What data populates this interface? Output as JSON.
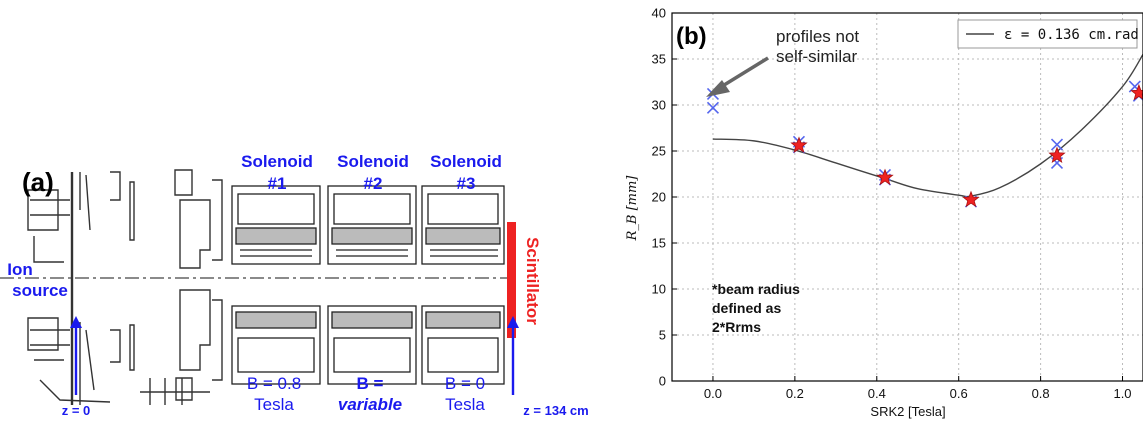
{
  "panel_a": {
    "label": "(a)",
    "ion_source": [
      "Ion",
      "source"
    ],
    "solenoids": [
      {
        "name": [
          "Solenoid",
          "#1"
        ],
        "field": [
          "B = 0.8",
          "Tesla"
        ]
      },
      {
        "name": [
          "Solenoid",
          "#2"
        ],
        "field": [
          "B =",
          "variable"
        ]
      },
      {
        "name": [
          "Solenoid",
          "#3"
        ],
        "field": [
          "B = 0",
          "Tesla"
        ]
      }
    ],
    "scintillator": "Scintillator",
    "z_start": "z = 0",
    "z_end": "z = 134 cm",
    "colors": {
      "blue": "#1a1aee",
      "red": "#ee2222",
      "line": "#333333"
    }
  },
  "panel_b": {
    "label": "(b)",
    "annotation": [
      "profiles not",
      "self-similar"
    ],
    "note": [
      "*beam radius",
      "defined as",
      "2*Rrms"
    ],
    "legend": "ε = 0.136 cm.rad",
    "legend_placement": "top-right",
    "xlabel": "SRK2 [Tesla]",
    "ylabel": "R_B [mm]",
    "colors": {
      "curve": "#444444",
      "star": "#ee2222",
      "cross": "#5566ee",
      "arrow": "#666666"
    }
  },
  "chart_data": {
    "type": "scatter",
    "title": "",
    "xlabel": "SRK2 [Tesla]",
    "ylabel": "R_B [mm]",
    "xlim": [
      -0.1,
      1.05
    ],
    "ylim": [
      0,
      40
    ],
    "xticks": [
      0.0,
      0.2,
      0.4,
      0.6,
      0.8,
      1.0
    ],
    "yticks": [
      0,
      5,
      10,
      15,
      20,
      25,
      30,
      35,
      40
    ],
    "grid": true,
    "series": [
      {
        "kind": "line",
        "x": [
          0.0,
          0.1,
          0.2,
          0.3,
          0.42,
          0.5,
          0.6,
          0.63,
          0.7,
          0.8,
          0.9,
          1.0,
          1.05
        ],
        "y": [
          26.3,
          26.1,
          25.1,
          23.7,
          22.0,
          20.9,
          20.2,
          20.1,
          21.0,
          23.6,
          27.3,
          32.0,
          35.5
        ]
      },
      {
        "kind": "star",
        "x": [
          0.21,
          0.42,
          0.63,
          0.84,
          1.04
        ],
        "y": [
          25.6,
          22.1,
          19.7,
          24.5,
          31.3
        ]
      },
      {
        "kind": "cross",
        "x": [
          0.0,
          0.0,
          0.21,
          0.21,
          0.42,
          0.42,
          0.63,
          0.84,
          0.84,
          1.03,
          1.04
        ],
        "y": [
          29.7,
          31.2,
          26.0,
          25.4,
          22.4,
          21.9,
          19.5,
          25.7,
          23.7,
          32.0,
          31.0
        ]
      }
    ]
  }
}
